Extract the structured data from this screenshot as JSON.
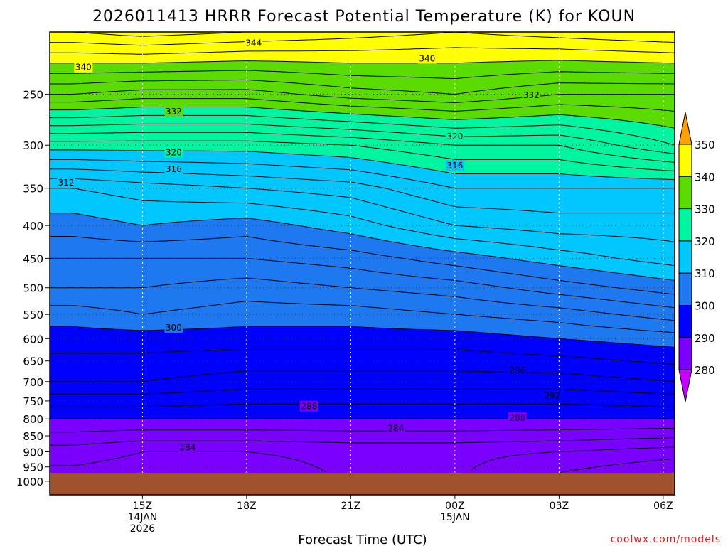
{
  "chart_data": {
    "type": "heatmap",
    "title": "2026011413 HRRR Forecast Potential Temperature (K) for KOUN",
    "xlabel": "Forecast Time (UTC)",
    "ylabel": "",
    "credit": "coolwx.com/models",
    "y_scale": "log-pressure",
    "y_range_hpa": [
      200,
      1050
    ],
    "x_range_hours": [
      -0.67,
      17.33
    ],
    "y_ticks": [
      {
        "value": 250,
        "label": "250"
      },
      {
        "value": 300,
        "label": "300"
      },
      {
        "value": 350,
        "label": "350"
      },
      {
        "value": 400,
        "label": "400"
      },
      {
        "value": 450,
        "label": "450"
      },
      {
        "value": 500,
        "label": "500"
      },
      {
        "value": 550,
        "label": "550"
      },
      {
        "value": 600,
        "label": "600"
      },
      {
        "value": 650,
        "label": "650"
      },
      {
        "value": 700,
        "label": "700"
      },
      {
        "value": 750,
        "label": "750"
      },
      {
        "value": 800,
        "label": "800"
      },
      {
        "value": 850,
        "label": "850"
      },
      {
        "value": 900,
        "label": "900"
      },
      {
        "value": 950,
        "label": "950"
      },
      {
        "value": 1000,
        "label": "1000"
      }
    ],
    "x_ticks": [
      {
        "hour": 2,
        "lines": [
          "15Z",
          "14JAN",
          "2026"
        ]
      },
      {
        "hour": 5,
        "lines": [
          "18Z"
        ]
      },
      {
        "hour": 8,
        "lines": [
          "21Z"
        ]
      },
      {
        "hour": 11,
        "lines": [
          "00Z",
          "15JAN"
        ]
      },
      {
        "hour": 14,
        "lines": [
          "03Z"
        ]
      },
      {
        "hour": 17,
        "lines": [
          "06Z"
        ]
      }
    ],
    "grid": true,
    "surface_pressure_hpa": 970,
    "colorbar": {
      "placement": "right",
      "levels": [
        280,
        290,
        300,
        310,
        320,
        330,
        340,
        350
      ],
      "labels": [
        "280",
        "290",
        "300",
        "310",
        "320",
        "330",
        "340",
        "350"
      ],
      "colors": [
        "#c800ff",
        "#7a00ff",
        "#0000ff",
        "#1e78f0",
        "#00c8ff",
        "#00f5a0",
        "#5adc00",
        "#ffff00",
        "#ffa000"
      ],
      "extend": "both"
    },
    "contour_interval_K": 2,
    "theta_profile_hours": [
      0,
      2,
      5,
      8,
      11,
      14,
      17.33
    ],
    "theta_profile": [
      {
        "p": 200,
        "theta": [
          346,
          347,
          346,
          345,
          344,
          345,
          346
        ]
      },
      {
        "p": 250,
        "theta": [
          334,
          333,
          333,
          335,
          336,
          334,
          334
        ]
      },
      {
        "p": 300,
        "theta": [
          321,
          321,
          321,
          322,
          324,
          324,
          328
        ]
      },
      {
        "p": 350,
        "theta": [
          312,
          313,
          314,
          315,
          318,
          318,
          318
        ]
      },
      {
        "p": 400,
        "theta": [
          309,
          310,
          309,
          311,
          314,
          315,
          315
        ]
      },
      {
        "p": 450,
        "theta": [
          306,
          306,
          306,
          307,
          309,
          311,
          313
        ]
      },
      {
        "p": 500,
        "theta": [
          304,
          304,
          303,
          304,
          305,
          307,
          309
        ]
      },
      {
        "p": 550,
        "theta": [
          301,
          302,
          301,
          301,
          302,
          303,
          305
        ]
      },
      {
        "p": 600,
        "theta": [
          299,
          299,
          299,
          299,
          299,
          300,
          301
        ]
      },
      {
        "p": 700,
        "theta": [
          296,
          296,
          295,
          295,
          295,
          295,
          296
        ]
      },
      {
        "p": 800,
        "theta": [
          290,
          290,
          290,
          290,
          290,
          290,
          290
        ]
      },
      {
        "p": 900,
        "theta": [
          285,
          284,
          284,
          284.5,
          284.5,
          284,
          283
        ]
      },
      {
        "p": 970,
        "theta": [
          283.5,
          283,
          283,
          284.3,
          284.3,
          282,
          280
        ]
      }
    ],
    "contour_labels": [
      {
        "value": 344,
        "text": "344",
        "hour": 5.2,
        "p": 208
      },
      {
        "value": 340,
        "text": "340",
        "hour": 0.3,
        "p": 227
      },
      {
        "value": 340,
        "text": "340",
        "hour": 10.2,
        "p": 220
      },
      {
        "value": 332,
        "text": "332",
        "hour": 2.9,
        "p": 266
      },
      {
        "value": 332,
        "text": "332",
        "hour": 13.2,
        "p": 251
      },
      {
        "value": 320,
        "text": "320",
        "hour": 2.9,
        "p": 308
      },
      {
        "value": 320,
        "text": "320",
        "hour": 11.0,
        "p": 291
      },
      {
        "value": 316,
        "text": "316",
        "hour": 2.9,
        "p": 327
      },
      {
        "value": 316,
        "text": "316",
        "hour": 11.0,
        "p": 323
      },
      {
        "value": 312,
        "text": "312",
        "hour": -0.2,
        "p": 343
      },
      {
        "value": 300,
        "text": "300",
        "hour": 2.9,
        "p": 577
      },
      {
        "value": 296,
        "text": "296",
        "hour": 12.8,
        "p": 672
      },
      {
        "value": 292,
        "text": "292",
        "hour": 13.8,
        "p": 736
      },
      {
        "value": 288,
        "text": "288",
        "hour": 6.8,
        "p": 765
      },
      {
        "value": 288,
        "text": "288",
        "hour": 12.8,
        "p": 797
      },
      {
        "value": 284,
        "text": "284",
        "hour": 9.3,
        "p": 827
      },
      {
        "value": 284,
        "text": "284",
        "hour": 3.3,
        "p": 886
      }
    ]
  }
}
